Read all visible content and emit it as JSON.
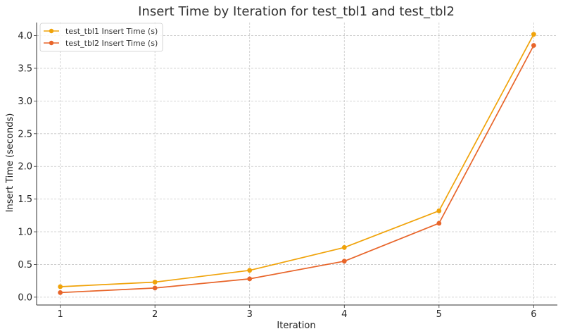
{
  "chart_data": {
    "type": "line",
    "title": "Insert Time by Iteration for test_tbl1 and test_tbl2",
    "xlabel": "Iteration",
    "ylabel": "Insert Time (seconds)",
    "x": [
      1,
      2,
      3,
      4,
      5,
      6
    ],
    "x_tick_labels": [
      "1",
      "2",
      "3",
      "4",
      "5",
      "6"
    ],
    "y_ticks": [
      0.0,
      0.5,
      1.0,
      1.5,
      2.0,
      2.5,
      3.0,
      3.5,
      4.0
    ],
    "y_tick_labels": [
      "0.0",
      "0.5",
      "1.0",
      "1.5",
      "2.0",
      "2.5",
      "3.0",
      "3.5",
      "4.0"
    ],
    "xlim": [
      0.75,
      6.25
    ],
    "ylim": [
      -0.12,
      4.2
    ],
    "grid": true,
    "legend_position": "top-left",
    "series": [
      {
        "name": "test_tbl1 Insert Time (s)",
        "color": "#f0a30a",
        "values": [
          0.16,
          0.23,
          0.41,
          0.76,
          1.32,
          4.02
        ]
      },
      {
        "name": "test_tbl2 Insert Time (s)",
        "color": "#e8652a",
        "values": [
          0.07,
          0.14,
          0.28,
          0.55,
          1.13,
          3.85
        ]
      }
    ]
  }
}
